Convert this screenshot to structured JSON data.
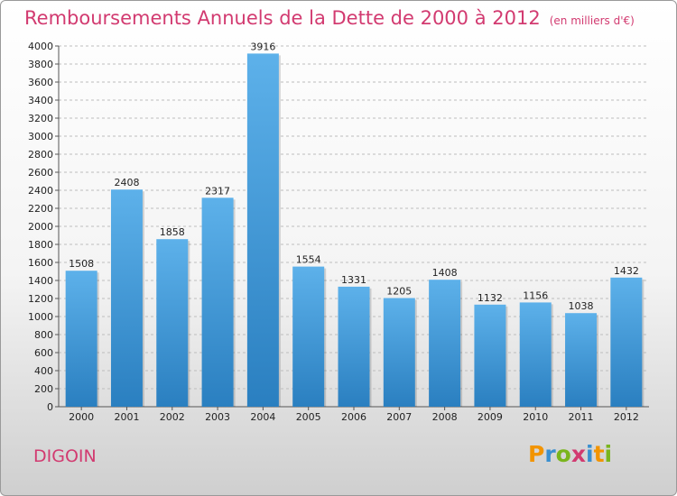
{
  "title": "Remboursements Annuels de la Dette de 2000 à 2012",
  "unit_note": "(en milliers d'€)",
  "city": "DIGOIN",
  "logo": {
    "letters": [
      "P",
      "r",
      "o",
      "x",
      "i",
      "t",
      "i"
    ],
    "colors": [
      "#f29400",
      "#3a8fd0",
      "#7ab51d",
      "#d23a70",
      "#3a8fd0",
      "#f29400",
      "#7ab51d"
    ]
  },
  "colors": {
    "bar_top": "#5db1ea",
    "bar_bottom": "#2a7fc0",
    "title": "#d23a70",
    "grid": "#bdbdbd"
  },
  "chart_data": {
    "type": "bar",
    "categories": [
      "2000",
      "2001",
      "2002",
      "2003",
      "2004",
      "2005",
      "2006",
      "2007",
      "2008",
      "2009",
      "2010",
      "2011",
      "2012"
    ],
    "values": [
      1508,
      2408,
      1858,
      2317,
      3916,
      1554,
      1331,
      1205,
      1408,
      1132,
      1156,
      1038,
      1432
    ],
    "ylim": [
      0,
      4000
    ],
    "yticks": [
      "0",
      "200",
      "400",
      "600",
      "800",
      "1000",
      "1200",
      "1400",
      "1600",
      "1800",
      "2000",
      "2200",
      "2400",
      "2600",
      "2800",
      "3000",
      "3200",
      "3400",
      "3600",
      "3800",
      "4000"
    ],
    "grid": true
  }
}
